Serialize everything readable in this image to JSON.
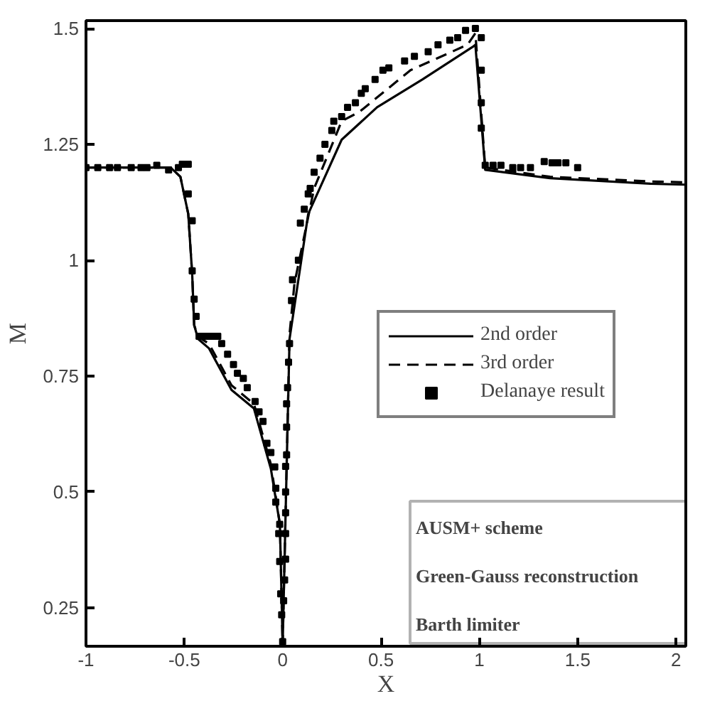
{
  "chart_data": {
    "type": "line",
    "xlabel": "X",
    "ylabel": "M",
    "xlim": [
      -1,
      2.05
    ],
    "ylim": [
      0.167,
      1.517
    ],
    "xticks": [
      -1,
      -0.5,
      0,
      0.5,
      1,
      1.5,
      2
    ],
    "yticks": [
      0.25,
      0.5,
      0.75,
      1,
      1.25,
      1.5
    ],
    "grid": false,
    "legend": "right",
    "series": [
      {
        "name": "2nd order",
        "color": "#000000",
        "line_style": "solid",
        "x": [
          -1,
          -0.57,
          -0.52,
          -0.48,
          -0.46,
          -0.45,
          -0.43,
          -0.375,
          -0.26,
          -0.146,
          -0.06,
          -0.014,
          0,
          0.035,
          0.13,
          0.3,
          0.48,
          0.71,
          0.965,
          0.98,
          1.03,
          1.36,
          1.87,
          2.05
        ],
        "values": [
          1.2,
          1.2,
          1.18,
          1.1,
          0.97,
          0.86,
          0.83,
          0.81,
          0.72,
          0.68,
          0.55,
          0.43,
          0.17,
          0.83,
          1.1,
          1.26,
          1.33,
          1.39,
          1.46,
          1.465,
          1.195,
          1.177,
          1.165,
          1.163
        ]
      },
      {
        "name": "3rd order",
        "color": "#000000",
        "line_style": "dashed",
        "x": [
          -1,
          -0.57,
          -0.52,
          -0.48,
          -0.46,
          -0.45,
          -0.43,
          -0.375,
          -0.26,
          -0.146,
          -0.06,
          -0.014,
          0,
          0.035,
          0.06,
          0.16,
          0.3,
          0.39,
          0.65,
          0.94,
          0.98,
          1.03,
          1.36,
          1.87,
          2.05
        ],
        "values": [
          1.2,
          1.2,
          1.18,
          1.1,
          0.97,
          0.86,
          0.835,
          0.82,
          0.73,
          0.69,
          0.56,
          0.43,
          0.17,
          0.84,
          0.95,
          1.155,
          1.3,
          1.32,
          1.41,
          1.465,
          1.49,
          1.2,
          1.18,
          1.17,
          1.168
        ]
      },
      {
        "name": "Delanaye result",
        "type": "scatter",
        "marker": "square",
        "color": "#000000",
        "x": [
          -1,
          -0.94,
          -0.88,
          -0.84,
          -0.77,
          -0.72,
          -0.69,
          -0.64,
          -0.58,
          -0.53,
          -0.51,
          -0.48,
          -0.48,
          -0.46,
          -0.46,
          -0.45,
          -0.44,
          -0.425,
          -0.4,
          -0.375,
          -0.35,
          -0.33,
          -0.31,
          -0.28,
          -0.25,
          -0.23,
          -0.2,
          -0.18,
          -0.14,
          -0.12,
          -0.1,
          -0.08,
          -0.06,
          -0.04,
          -0.035,
          -0.035,
          -0.015,
          -0.02,
          -0.015,
          -0.01,
          -0.005,
          0,
          0.005,
          0.01,
          0.015,
          0.015,
          0.015,
          0.015,
          0.015,
          0.02,
          0.02,
          0.02,
          0.025,
          0.03,
          0.035,
          0.045,
          0.05,
          0.08,
          0.09,
          0.11,
          0.13,
          0.14,
          0.16,
          0.19,
          0.215,
          0.25,
          0.26,
          0.3,
          0.33,
          0.37,
          0.4,
          0.42,
          0.47,
          0.51,
          0.54,
          0.62,
          0.67,
          0.74,
          0.79,
          0.85,
          0.89,
          0.93,
          0.98,
          1.01,
          1.01,
          1.01,
          1.01,
          1.03,
          1.07,
          1.11,
          1.17,
          1.21,
          1.26,
          1.33,
          1.37,
          1.4,
          1.44,
          1.5
        ],
        "values": [
          1.2,
          1.2,
          1.2,
          1.2,
          1.2,
          1.2,
          1.2,
          1.205,
          1.195,
          1.2,
          1.207,
          1.207,
          1.143,
          1.085,
          0.977,
          0.916,
          0.879,
          0.836,
          0.836,
          0.836,
          0.836,
          0.836,
          0.82,
          0.797,
          0.775,
          0.756,
          0.745,
          0.725,
          0.695,
          0.673,
          0.652,
          0.605,
          0.585,
          0.554,
          0.508,
          0.478,
          0.43,
          0.41,
          0.35,
          0.28,
          0.235,
          0.177,
          0.265,
          0.31,
          0.355,
          0.41,
          0.455,
          0.5,
          0.555,
          0.58,
          0.64,
          0.69,
          0.725,
          0.78,
          0.82,
          0.913,
          0.958,
          1.0,
          1.08,
          1.11,
          1.143,
          1.155,
          1.19,
          1.22,
          1.25,
          1.28,
          1.3,
          1.31,
          1.33,
          1.34,
          1.36,
          1.37,
          1.39,
          1.41,
          1.415,
          1.43,
          1.44,
          1.45,
          1.465,
          1.475,
          1.48,
          1.496,
          1.5,
          1.48,
          1.41,
          1.34,
          1.285,
          1.205,
          1.205,
          1.205,
          1.2,
          1.2,
          1.2,
          1.213,
          1.21,
          1.21,
          1.21,
          1.2
        ]
      }
    ],
    "annotations": [
      "AUSM+ scheme",
      "Green-Gauss reconstruction",
      "Barth limiter"
    ]
  }
}
